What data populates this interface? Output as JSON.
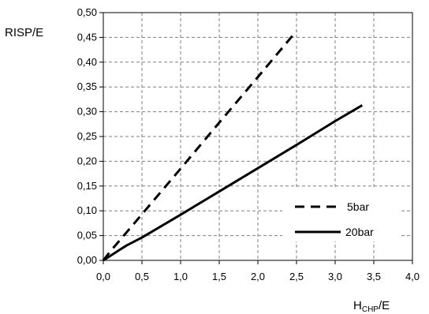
{
  "chart_data": {
    "type": "line",
    "ylabel": "RISP/E",
    "xlabel": {
      "main": "H",
      "sub": "CHP",
      "suffix": "/E"
    },
    "xlim": [
      0,
      4
    ],
    "ylim": [
      0,
      0.5
    ],
    "x_ticks": [
      "0,0",
      "0,5",
      "1,0",
      "1,5",
      "2,0",
      "2,5",
      "3,0",
      "3,5",
      "4,0"
    ],
    "y_ticks": [
      "0,00",
      "0,05",
      "0,10",
      "0,15",
      "0,20",
      "0,25",
      "0,30",
      "0,35",
      "0,40",
      "0,45",
      "0,50"
    ],
    "grid": true,
    "legend_position": "lower-right",
    "series": [
      {
        "name": "5bar",
        "style": "dashed",
        "color": "#000000",
        "x": [
          0.0,
          0.1,
          0.2,
          0.5,
          1.0,
          1.5,
          2.0,
          2.5
        ],
        "y": [
          0.0,
          0.02,
          0.038,
          0.093,
          0.185,
          0.278,
          0.37,
          0.463
        ]
      },
      {
        "name": "20bar",
        "style": "solid",
        "color": "#000000",
        "x": [
          0.0,
          0.1,
          0.2,
          0.3,
          0.5,
          1.0,
          1.5,
          2.0,
          2.5,
          3.0,
          3.35
        ],
        "y": [
          0.0,
          0.01,
          0.02,
          0.03,
          0.046,
          0.092,
          0.139,
          0.186,
          0.233,
          0.281,
          0.313
        ]
      }
    ]
  }
}
